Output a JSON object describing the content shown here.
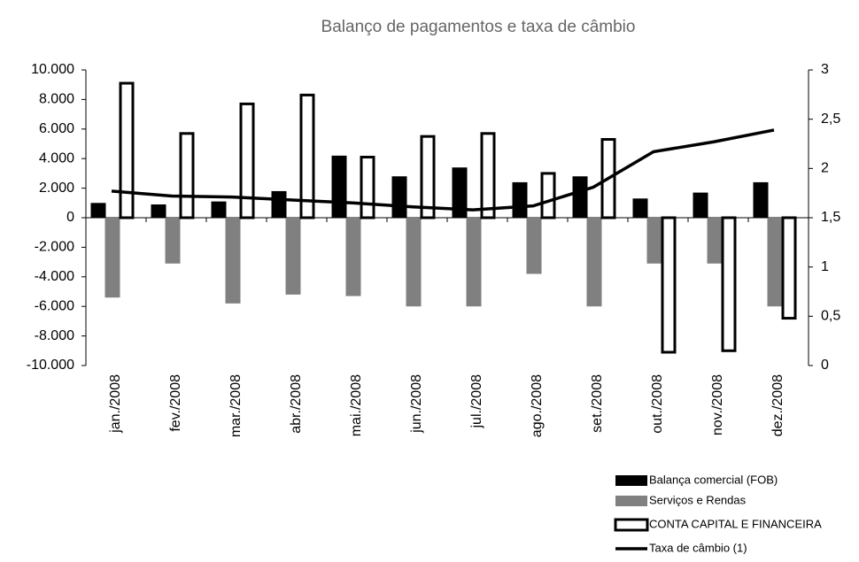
{
  "chart_data": {
    "type": "bar",
    "title": "Balanço de pagamentos e taxa de câmbio",
    "categories": [
      "jan./2008",
      "fev./2008",
      "mar./2008",
      "abr./2008",
      "mai./2008",
      "jun./2008",
      "jul./2008",
      "ago./2008",
      "set./2008",
      "out./2008",
      "nov./2008",
      "dez./2008"
    ],
    "series": [
      {
        "name": "Balança comercial (FOB)",
        "type": "bar",
        "color": "#000000",
        "values": [
          1000,
          900,
          1100,
          1800,
          4200,
          2800,
          3400,
          2400,
          2800,
          1300,
          1700,
          2400
        ]
      },
      {
        "name": "Serviços e Rendas",
        "type": "bar",
        "color": "#808080",
        "values": [
          -5400,
          -3100,
          -5800,
          -5200,
          -5300,
          -6000,
          -6000,
          -3800,
          -6000,
          -3100,
          -3100,
          -6000
        ]
      },
      {
        "name": "CONTA CAPITAL E FINANCEIRA",
        "type": "bar",
        "color": "#ffffff",
        "stroke": "#000000",
        "values": [
          9100,
          5700,
          7700,
          8300,
          4100,
          5500,
          5700,
          3000,
          5300,
          -9100,
          -9000,
          -6800
        ]
      },
      {
        "name": "Taxa de câmbio (1)",
        "type": "line",
        "axis": "y2",
        "color": "#000000",
        "values": [
          1.77,
          1.72,
          1.71,
          1.68,
          1.65,
          1.61,
          1.58,
          1.62,
          1.81,
          2.17,
          2.27,
          2.39
        ]
      }
    ],
    "ylim": [
      -10000,
      10000
    ],
    "yticks": [
      {
        "value": 10000,
        "label": "10.000"
      },
      {
        "value": 8000,
        "label": "8.000"
      },
      {
        "value": 6000,
        "label": "6.000"
      },
      {
        "value": 4000,
        "label": "4.000"
      },
      {
        "value": 2000,
        "label": "2.000"
      },
      0,
      {
        "value": -2000,
        "label": "-2.000"
      },
      {
        "value": -4000,
        "label": "-4.000"
      },
      {
        "value": -6000,
        "label": "-6.000"
      },
      {
        "value": -8000,
        "label": "-8.000"
      },
      {
        "value": -10000,
        "label": "-10.000"
      }
    ],
    "y2lim": [
      0,
      3
    ],
    "y2ticks": [
      3,
      {
        "value": 2.5,
        "label": "2,5"
      },
      2,
      {
        "value": 1.5,
        "label": "1,5"
      },
      1,
      {
        "value": 0.5,
        "label": "0,5"
      },
      0
    ],
    "grid": false
  }
}
